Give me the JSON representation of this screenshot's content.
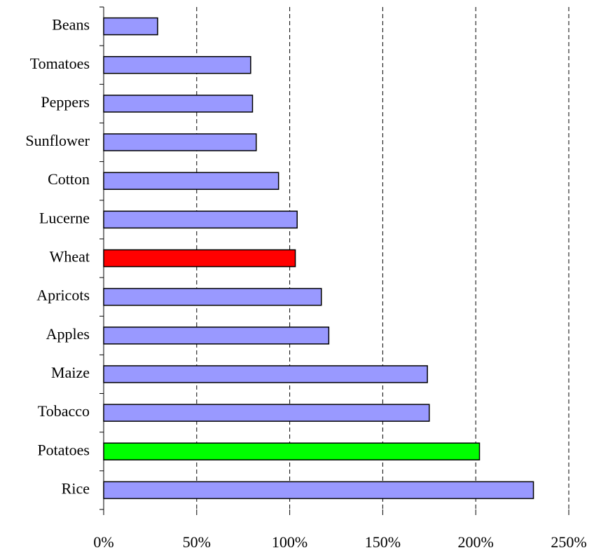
{
  "chart_data": {
    "type": "barh",
    "categories": [
      "Beans",
      "Tomatoes",
      "Peppers",
      "Sunflower",
      "Cotton",
      "Lucerne",
      "Wheat",
      "Apricots",
      "Apples",
      "Maize",
      "Tobacco",
      "Potatoes",
      "Rice"
    ],
    "values": [
      29,
      79,
      80,
      82,
      94,
      104,
      103,
      117,
      121,
      174,
      175,
      202,
      231
    ],
    "colors": [
      "#9999ff",
      "#9999ff",
      "#9999ff",
      "#9999ff",
      "#9999ff",
      "#9999ff",
      "#ff0000",
      "#9999ff",
      "#9999ff",
      "#9999ff",
      "#9999ff",
      "#00ff00",
      "#9999ff"
    ],
    "xlim": [
      0,
      250
    ],
    "xticks": [
      {
        "value": 0,
        "label": "0%"
      },
      {
        "value": 50,
        "label": "50%"
      },
      {
        "value": 100,
        "label": "100%"
      },
      {
        "value": 150,
        "label": "150%"
      },
      {
        "value": 200,
        "label": "200%"
      },
      {
        "value": 250,
        "label": "250%"
      }
    ],
    "grid": true
  }
}
